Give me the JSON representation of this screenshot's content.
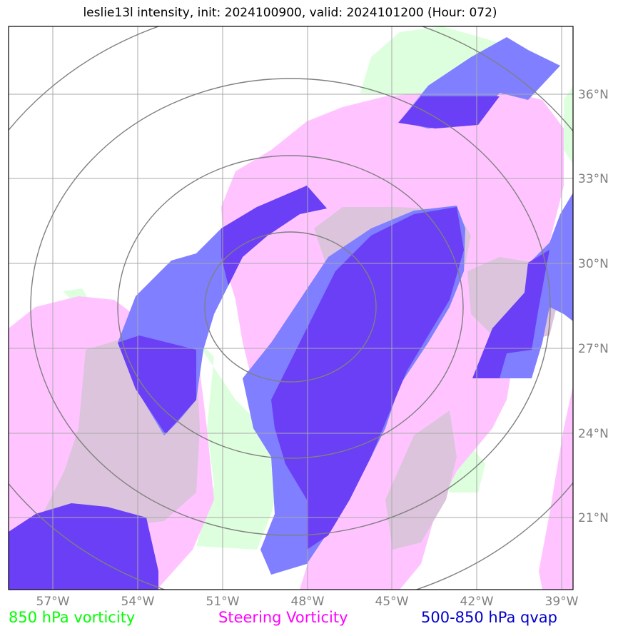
{
  "title": "leslie13l intensity, init: 2024100900, valid: 2024101200 (Hour: 072)",
  "map": {
    "lon_ticks": [
      "57°W",
      "54°W",
      "51°W",
      "48°W",
      "45°W",
      "42°W",
      "39°W"
    ],
    "lat_ticks": [
      "36°N",
      "33°N",
      "30°N",
      "27°N",
      "24°N",
      "21°N"
    ],
    "colors": {
      "vorticity_850": "#ddffdd",
      "steering_vorticity": "#ffc4ff",
      "steering_overlap": "#dcc4dc",
      "qvap_500_850": "#7f7fff",
      "qvap_dark": "#6a3ff5",
      "qvap_overlap": "#5b45e0",
      "grid": "#aaaaaa",
      "range_rings": "#808080"
    }
  },
  "legend": [
    {
      "label": "850 hPa vorticity",
      "color": "#00ff00"
    },
    {
      "label": "Steering Vorticity",
      "color": "#ff00ff"
    },
    {
      "label": "500-850 hPa qvap",
      "color": "#0000cc"
    }
  ]
}
